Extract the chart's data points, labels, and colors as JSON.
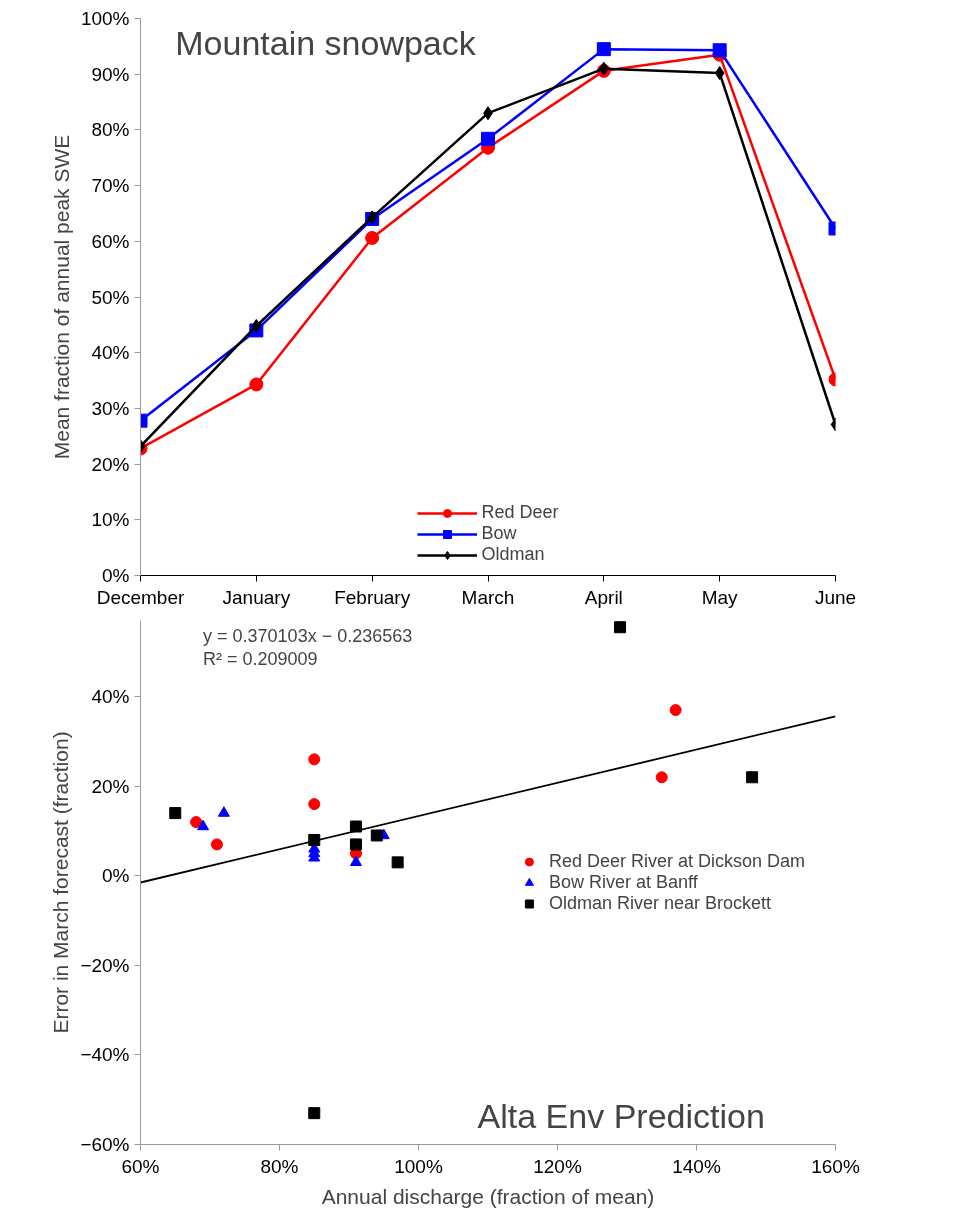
{
  "chart_data": [
    {
      "type": "line",
      "title": "Mountain snowpack",
      "ylabel": "Mean fraction of annual peak SWE",
      "categories": [
        "December",
        "January",
        "February",
        "March",
        "April",
        "May",
        "June"
      ],
      "series": [
        {
          "name": "Red Deer",
          "color": "#ff0000",
          "marker": "circle",
          "values": [
            22.8,
            34.3,
            60.6,
            76.8,
            90.6,
            93.5,
            35.2
          ]
        },
        {
          "name": "Bow",
          "color": "#0000ff",
          "marker": "square",
          "values": [
            27.8,
            44,
            64,
            78.4,
            94.5,
            94.3,
            62.3
          ]
        },
        {
          "name": "Oldman",
          "color": "#000000",
          "marker": "diamond",
          "values": [
            23.2,
            44.8,
            64.3,
            83,
            91,
            90.2,
            27.1
          ]
        }
      ],
      "ylim": [
        0,
        100
      ],
      "yticks": [
        {
          "value": 0,
          "label": "0%"
        },
        {
          "value": 10,
          "label": "10%"
        },
        {
          "value": 20,
          "label": "20%"
        },
        {
          "value": 30,
          "label": "30%"
        },
        {
          "value": 40,
          "label": "40%"
        },
        {
          "value": 50,
          "label": "50%"
        },
        {
          "value": 60,
          "label": "60%"
        },
        {
          "value": 70,
          "label": "70%"
        },
        {
          "value": 80,
          "label": "80%"
        },
        {
          "value": 90,
          "label": "90%"
        },
        {
          "value": 100,
          "label": "100%"
        }
      ],
      "grid": false,
      "legend": "bottom",
      "line_style": "solid"
    },
    {
      "type": "scatter",
      "xlabel": "Annual discharge (fraction of mean)",
      "ylabel": "Error in March forecast (fraction)",
      "annotations": [
        "y = 0.370103x − 0.236563",
        "R² = 0.209009",
        "Alta Env Prediction"
      ],
      "series": [
        {
          "name": "Red Deer River at Dickson Dam",
          "color": "#ff0000",
          "marker": "circle",
          "x": [
            68,
            71,
            85,
            85,
            91,
            135,
            137
          ],
          "values": [
            12,
            7,
            26,
            16,
            5,
            22,
            37
          ]
        },
        {
          "name": "Bow River at Banff",
          "color": "#0000ff",
          "marker": "triangle",
          "x": [
            69,
            72,
            85,
            85,
            85,
            91,
            95
          ],
          "values": [
            11,
            14,
            6,
            5,
            4,
            3,
            9
          ]
        },
        {
          "name": "Oldman River near Brockett",
          "color": "#000000",
          "marker": "square",
          "x": [
            65,
            85,
            91,
            91,
            94,
            97,
            129,
            148,
            85
          ],
          "values": [
            14,
            8,
            11,
            7,
            9,
            3,
            55.5,
            22,
            -53
          ]
        },
        {
          "type": "line",
          "color": "#000000",
          "marker": "none",
          "x": [
            60,
            160
          ],
          "values": [
            -1.5,
            35.6
          ]
        }
      ],
      "xlim": [
        60,
        160
      ],
      "ylim": [
        -60,
        57
      ],
      "xticks": [
        {
          "value": 60,
          "label": "60%"
        },
        {
          "value": 80,
          "label": "80%"
        },
        {
          "value": 100,
          "label": "100%"
        },
        {
          "value": 120,
          "label": "120%"
        },
        {
          "value": 140,
          "label": "140%"
        },
        {
          "value": 160,
          "label": "160%"
        }
      ],
      "yticks": [
        {
          "value": -60,
          "label": "−60%"
        },
        {
          "value": -40,
          "label": "−40%"
        },
        {
          "value": -20,
          "label": "−20%"
        },
        {
          "value": 0,
          "label": "0%"
        },
        {
          "value": 20,
          "label": "20%"
        },
        {
          "value": 40,
          "label": "40%"
        }
      ],
      "grid": false,
      "legend": "right"
    }
  ]
}
